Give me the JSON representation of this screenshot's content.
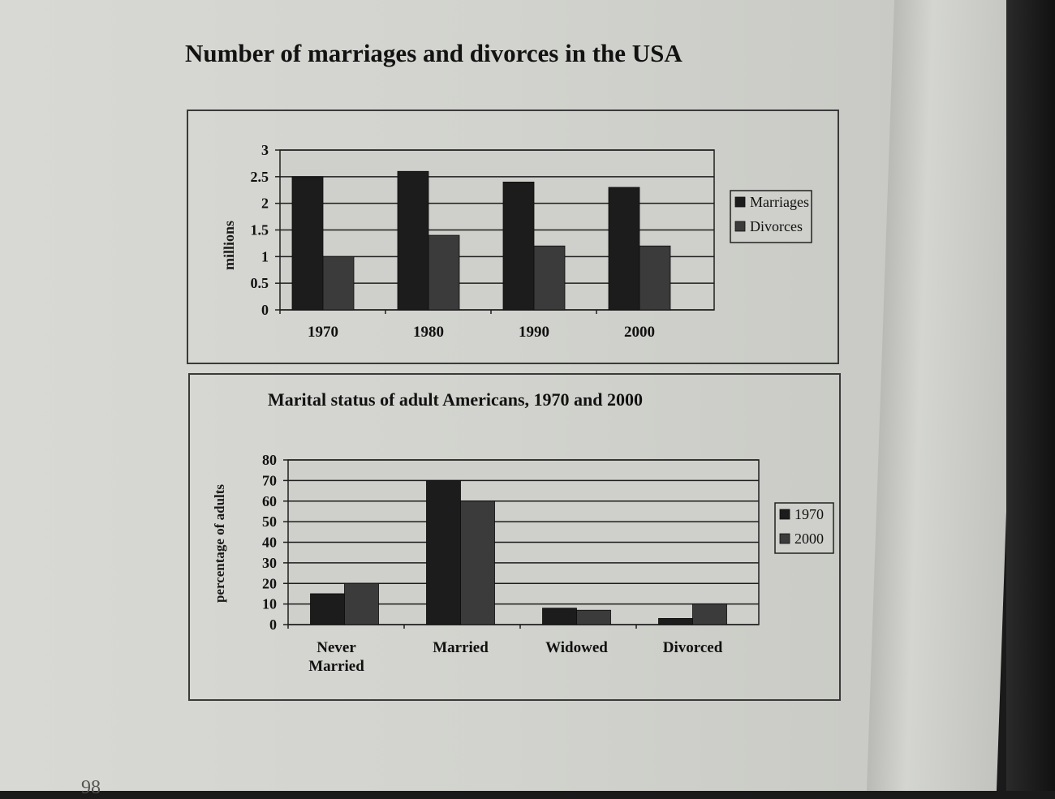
{
  "page_number": "98",
  "chart_data": [
    {
      "type": "bar",
      "title": "Number of marriages and divorces in the USA",
      "xlabel": "",
      "ylabel": "millions",
      "categories": [
        "1970",
        "1980",
        "1990",
        "2000"
      ],
      "series": [
        {
          "name": "Marriages",
          "values": [
            2.5,
            2.6,
            2.4,
            2.3
          ]
        },
        {
          "name": "Divorces",
          "values": [
            1.0,
            1.4,
            1.2,
            1.2
          ]
        }
      ],
      "ylim": [
        0,
        3
      ],
      "yticks": [
        "0",
        "0.5",
        "1",
        "1.5",
        "2",
        "2.5",
        "3"
      ],
      "grid": true,
      "legend_position": "right"
    },
    {
      "type": "bar",
      "title": "Marital status of adult Americans, 1970 and 2000",
      "xlabel": "",
      "ylabel": "percentage of adults",
      "categories": [
        "Never Married",
        "Married",
        "Widowed",
        "Divorced"
      ],
      "series": [
        {
          "name": "1970",
          "values": [
            15,
            70,
            8,
            3
          ]
        },
        {
          "name": "2000",
          "values": [
            20,
            60,
            7,
            10
          ]
        }
      ],
      "ylim": [
        0,
        80
      ],
      "yticks": [
        "0",
        "10",
        "20",
        "30",
        "40",
        "50",
        "60",
        "70",
        "80"
      ],
      "grid": true,
      "legend_position": "right"
    }
  ],
  "colors": {
    "series_a": "#1c1c1c",
    "series_b": "#3b3b3b",
    "grid": "#1e1e1e",
    "plot_bg": "#cfcfcb"
  }
}
